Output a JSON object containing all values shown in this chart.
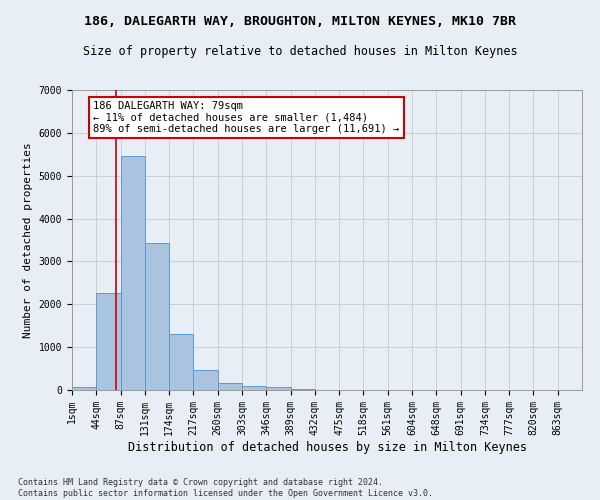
{
  "title": "186, DALEGARTH WAY, BROUGHTON, MILTON KEYNES, MK10 7BR",
  "subtitle": "Size of property relative to detached houses in Milton Keynes",
  "xlabel": "Distribution of detached houses by size in Milton Keynes",
  "ylabel": "Number of detached properties",
  "footnote": "Contains HM Land Registry data © Crown copyright and database right 2024.\nContains public sector information licensed under the Open Government Licence v3.0.",
  "bar_labels": [
    "1sqm",
    "44sqm",
    "87sqm",
    "131sqm",
    "174sqm",
    "217sqm",
    "260sqm",
    "303sqm",
    "346sqm",
    "389sqm",
    "432sqm",
    "475sqm",
    "518sqm",
    "561sqm",
    "604sqm",
    "648sqm",
    "691sqm",
    "734sqm",
    "777sqm",
    "820sqm",
    "863sqm"
  ],
  "bar_values": [
    80,
    2270,
    5470,
    3430,
    1300,
    460,
    160,
    90,
    60,
    30,
    10,
    5,
    2,
    1,
    0,
    0,
    0,
    0,
    0,
    0,
    0
  ],
  "bar_color": "#aac4e0",
  "bar_edge_color": "#5b9bd5",
  "annotation_text": "186 DALEGARTH WAY: 79sqm\n← 11% of detached houses are smaller (1,484)\n89% of semi-detached houses are larger (11,691) →",
  "annotation_box_color": "#ffffff",
  "annotation_box_edge": "#cc0000",
  "vline_x": 79,
  "vline_color": "#cc0000",
  "bin_width": 43,
  "xlim_left": 1,
  "ylim": [
    0,
    7000
  ],
  "background_color": "#e8eef5",
  "title_fontsize": 9.5,
  "subtitle_fontsize": 8.5,
  "ylabel_fontsize": 8,
  "xlabel_fontsize": 8.5,
  "tick_fontsize": 7,
  "footnote_fontsize": 6
}
